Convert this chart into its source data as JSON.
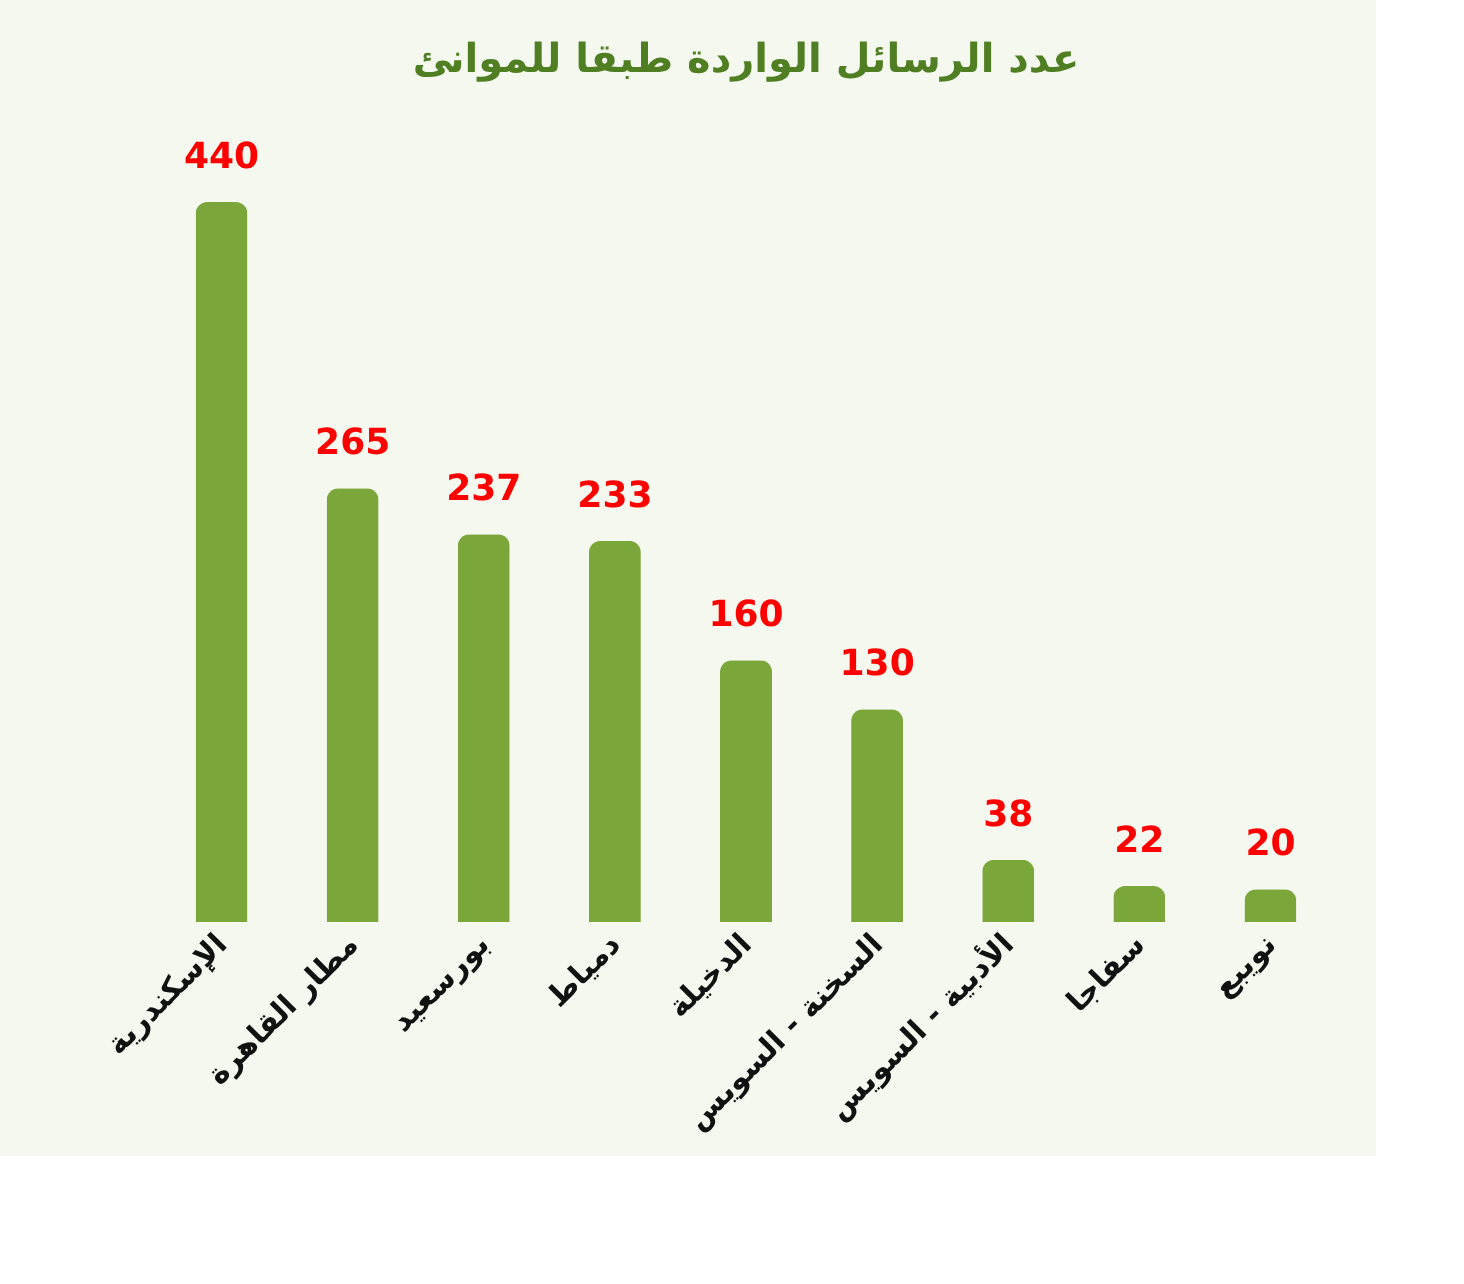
{
  "chart_data": {
    "type": "bar",
    "title": "عدد الرسائل الواردة طبقا للموانئ",
    "categories": [
      "الإسكندرية",
      "مطار القاهرة",
      "بورسعيد",
      "دمياط",
      "الدخيلة",
      "السخنة - السويس",
      "الأدبية - السويس",
      "سفاجا",
      "نويبع"
    ],
    "values": [
      440,
      265,
      237,
      233,
      160,
      130,
      38,
      22,
      20
    ],
    "color": "#7aa63a",
    "data_labels": true,
    "grid": false
  }
}
